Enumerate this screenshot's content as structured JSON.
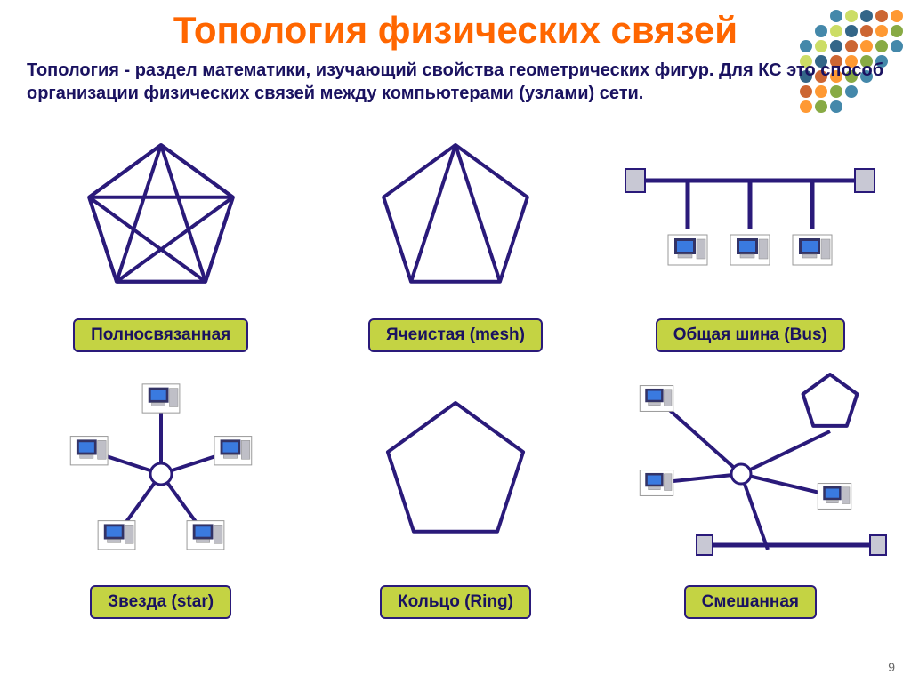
{
  "title": "Топология физических связей",
  "title_color": "#ff6600",
  "subtitle": "Топология - раздел математики, изучающий свойства геометрических фигур. Для КС это способ организации физических связей между компьютерами (узлами) сети.",
  "subtitle_color": "#1a1260",
  "label_bg": "#c4d343",
  "label_border": "#2a1a7a",
  "label_text_color": "#1a1260",
  "stroke_color": "#2a1a7a",
  "stroke_width": 4,
  "computer_frame": "#333366",
  "computer_screen": "#3a7ae0",
  "computer_base": "#bfbfc7",
  "page_number": "9",
  "decoration_colors": [
    "#ff9933",
    "#88aa44",
    "#4488aa",
    "#ccdd66",
    "#336688",
    "#cc6633"
  ],
  "topologies": [
    {
      "key": "full",
      "label": "Полносвязанная"
    },
    {
      "key": "mesh",
      "label": "Ячеистая (mesh)"
    },
    {
      "key": "bus",
      "label": "Общая шина (Bus)"
    },
    {
      "key": "star",
      "label": "Звезда (star)"
    },
    {
      "key": "ring",
      "label": "Кольцо (Ring)"
    },
    {
      "key": "mixed",
      "label": "Смешанная"
    }
  ]
}
